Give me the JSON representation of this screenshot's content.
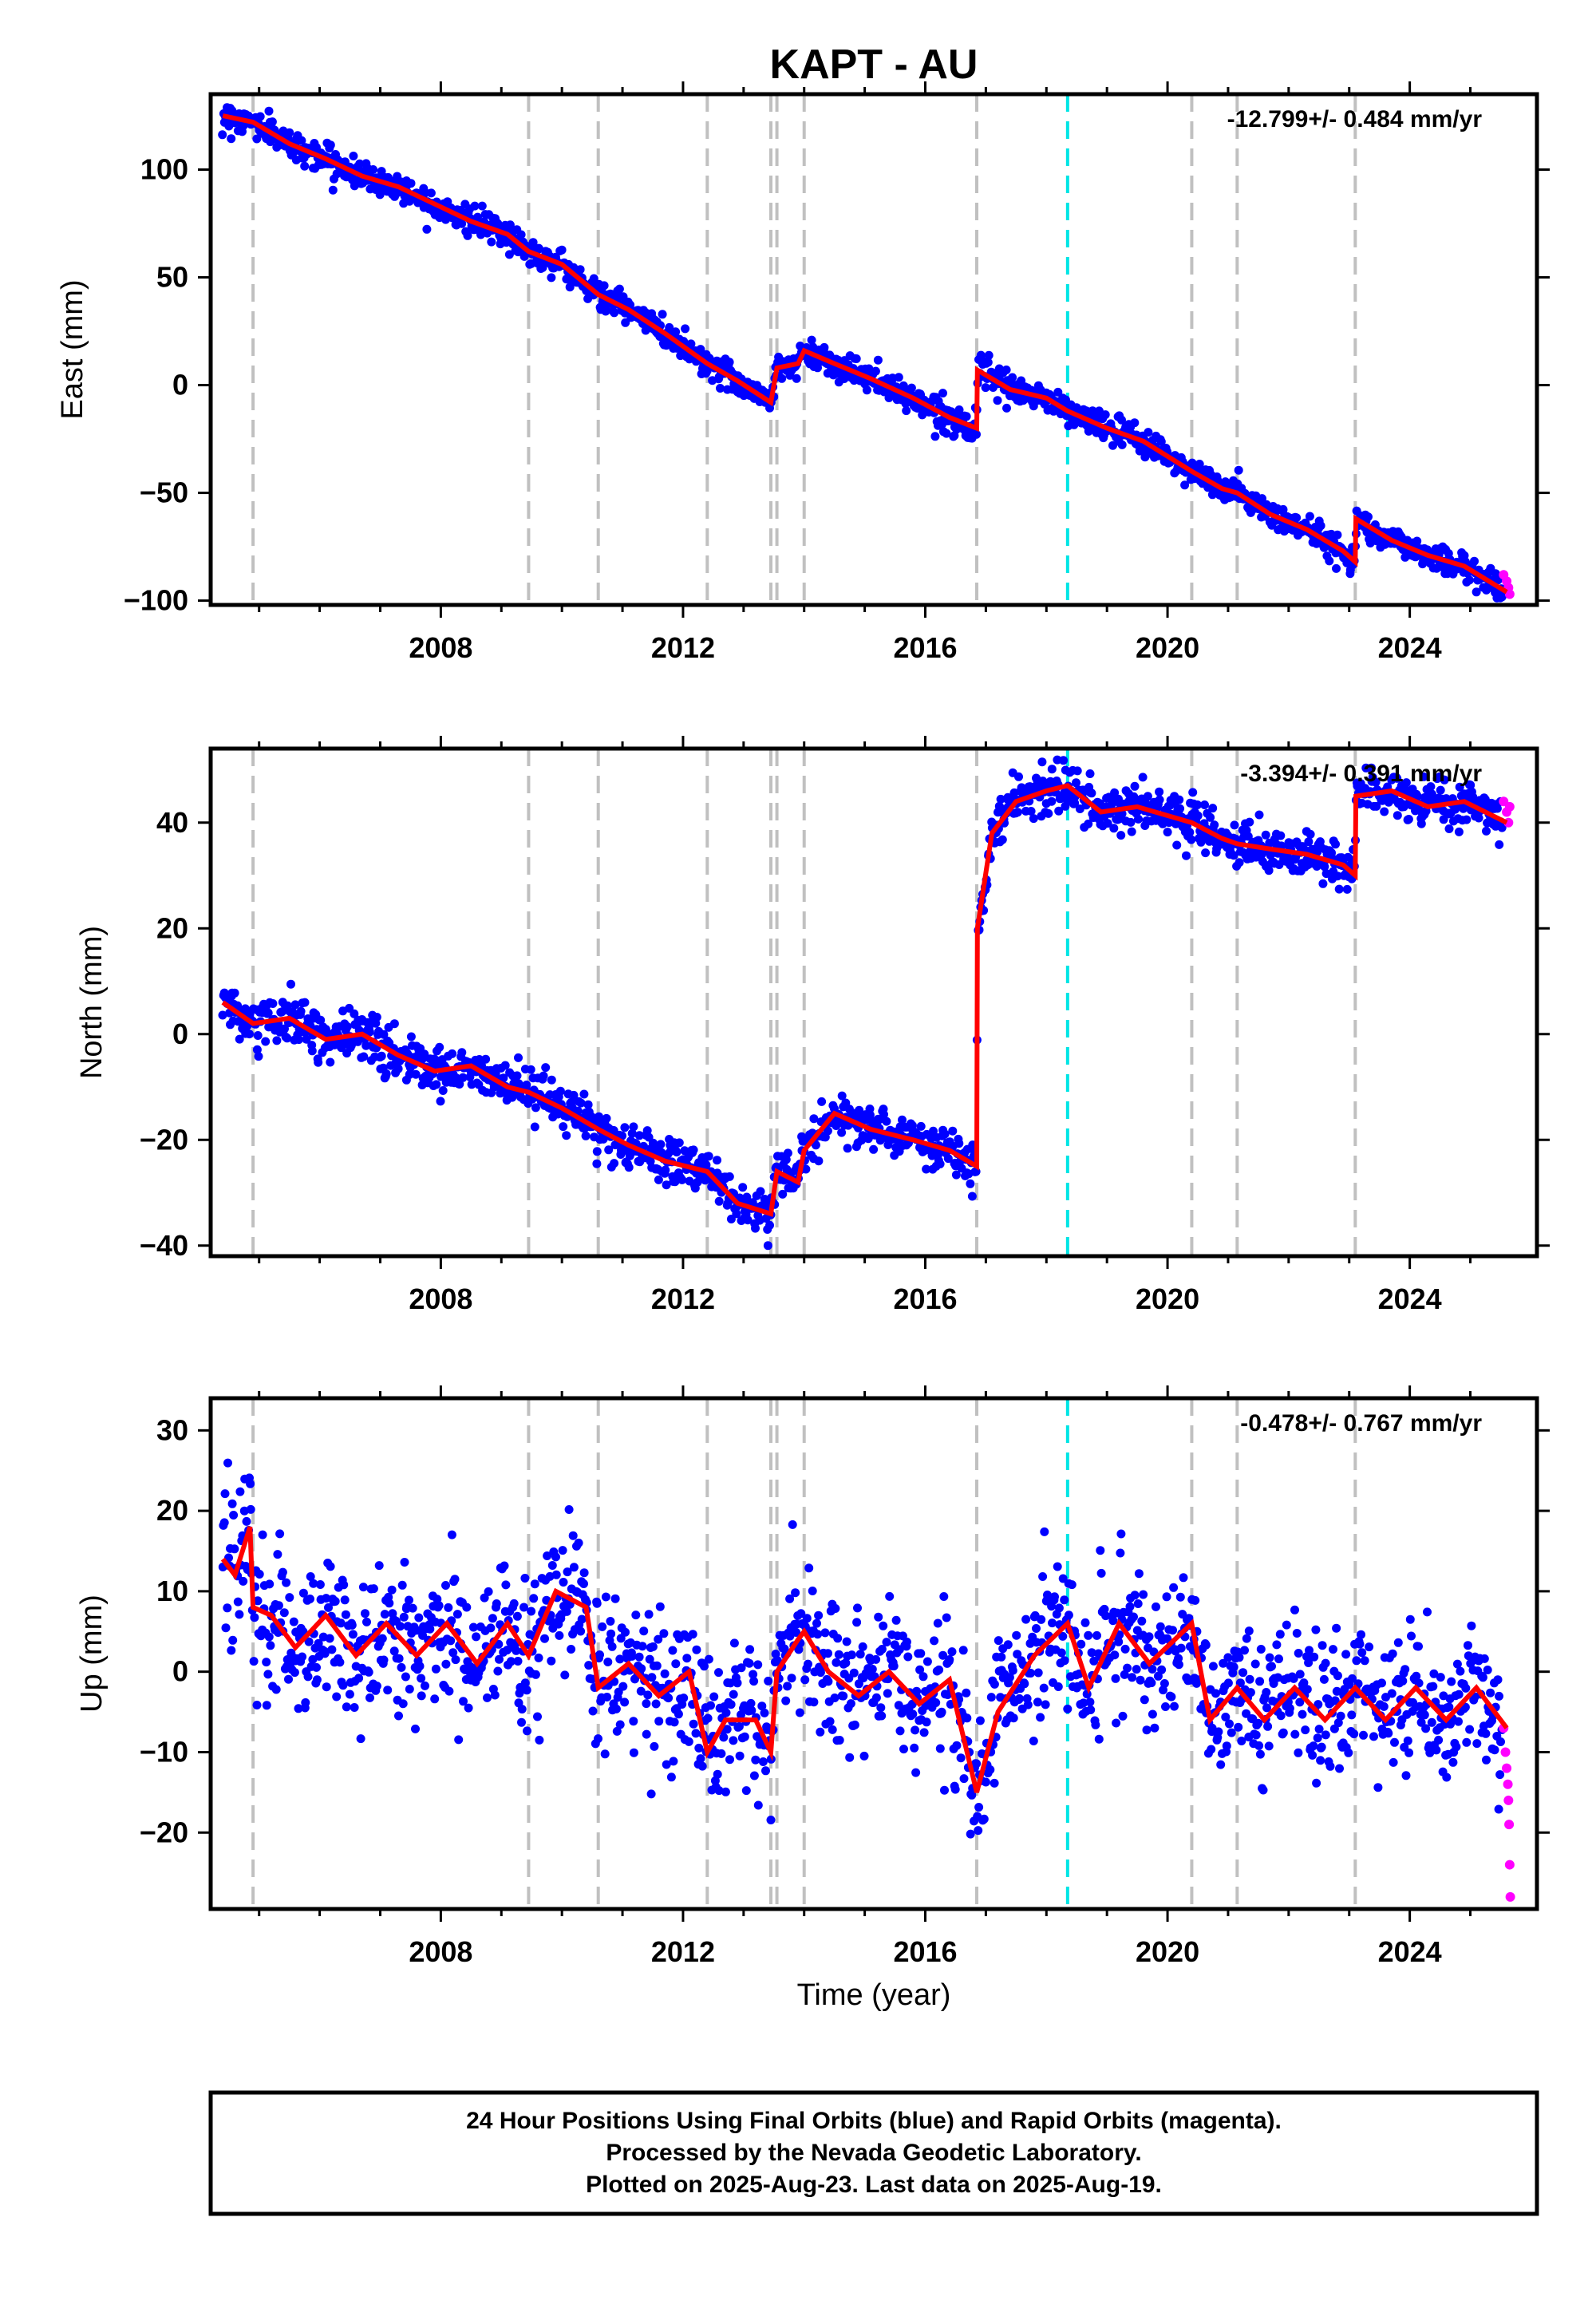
{
  "title": "KAPT - AU",
  "xlabel": "Time (year)",
  "caption": {
    "lines": [
      "24 Hour Positions Using Final Orbits (blue) and Rapid Orbits (magenta).",
      "Processed by the Nevada Geodetic Laboratory.",
      "Plotted on 2025-Aug-23. Last data on 2025-Aug-19."
    ]
  },
  "colors": {
    "final_points": "#0000ff",
    "rapid_points": "#ff00ff",
    "model": "#ff0000",
    "equipment_change": "#c0c0c0",
    "earthquake": "#00e5e5",
    "frame": "#000000"
  },
  "chart_data": [
    {
      "type": "scatter",
      "ylabel": "East (mm)",
      "rate": "-12.799+/- 0.484 mm/yr",
      "xlim": [
        2004.2,
        2026.1
      ],
      "ylim": [
        -102,
        135
      ],
      "xticks": [
        2008,
        2012,
        2016,
        2020,
        2024
      ],
      "yticks": [
        -100,
        -50,
        0,
        50,
        100
      ],
      "equipment_changes": [
        2004.9,
        2009.45,
        2010.6,
        2012.4,
        2013.45,
        2013.55,
        2014.0,
        2016.85,
        2020.4,
        2021.15,
        2023.1
      ],
      "earthquakes": [
        2018.35
      ],
      "model": {
        "x": [
          2004.4,
          2004.9,
          2005.5,
          2006.1,
          2006.7,
          2007.3,
          2007.9,
          2008.5,
          2009.1,
          2009.45,
          2010.0,
          2010.6,
          2011.1,
          2011.7,
          2012.4,
          2012.9,
          2013.45,
          2013.55,
          2013.9,
          2014.0,
          2014.5,
          2015.1,
          2015.8,
          2016.4,
          2016.85,
          2016.86,
          2017.4,
          2018.0,
          2018.35,
          2019.0,
          2019.6,
          2020.4,
          2020.9,
          2021.15,
          2021.7,
          2022.3,
          2022.9,
          2023.1,
          2023.11,
          2023.7,
          2024.3,
          2024.9,
          2025.6
        ],
        "y": [
          125,
          122,
          112,
          105,
          97,
          92,
          84,
          76,
          70,
          62,
          56,
          42,
          35,
          24,
          10,
          2,
          -8,
          8,
          10,
          16,
          10,
          3,
          -6,
          -15,
          -20,
          7,
          -2,
          -6,
          -12,
          -20,
          -26,
          -40,
          -48,
          -50,
          -60,
          -67,
          -77,
          -82,
          -62,
          -72,
          -79,
          -84,
          -96
        ]
      },
      "rapid": {
        "x": [
          2025.55,
          2025.6,
          2025.63,
          2025.65
        ],
        "y": [
          -88,
          -91,
          -94,
          -97
        ]
      }
    },
    {
      "type": "scatter",
      "ylabel": "North (mm)",
      "rate": "-3.394+/- 0.391 mm/yr",
      "xlim": [
        2004.2,
        2026.1
      ],
      "ylim": [
        -42,
        54
      ],
      "xticks": [
        2008,
        2012,
        2016,
        2020,
        2024
      ],
      "yticks": [
        -40,
        -20,
        0,
        20,
        40
      ],
      "equipment_changes": [
        2004.9,
        2009.45,
        2010.6,
        2012.4,
        2013.45,
        2013.55,
        2014.0,
        2016.85,
        2020.4,
        2021.15,
        2023.1
      ],
      "earthquakes": [
        2018.35
      ],
      "model": {
        "x": [
          2004.4,
          2004.9,
          2005.5,
          2006.1,
          2006.7,
          2007.3,
          2007.9,
          2008.5,
          2009.1,
          2009.45,
          2010.0,
          2010.6,
          2011.1,
          2011.7,
          2012.4,
          2012.9,
          2013.45,
          2013.55,
          2013.9,
          2014.0,
          2014.5,
          2015.1,
          2015.8,
          2016.4,
          2016.85,
          2016.86,
          2017.1,
          2017.5,
          2018.0,
          2018.35,
          2018.9,
          2019.5,
          2020.4,
          2020.9,
          2021.15,
          2021.7,
          2022.3,
          2022.9,
          2023.1,
          2023.11,
          2023.7,
          2024.3,
          2024.9,
          2025.6
        ],
        "y": [
          6,
          2,
          3,
          -1,
          0,
          -4,
          -7,
          -6,
          -10,
          -11,
          -14,
          -18,
          -21,
          -24,
          -26,
          -32,
          -34,
          -26,
          -28,
          -22,
          -15,
          -18,
          -20,
          -22,
          -25,
          20,
          38,
          44,
          46,
          47,
          42,
          43,
          40,
          37,
          36,
          35,
          34,
          32,
          30,
          45,
          46,
          43,
          44,
          40
        ]
      },
      "rapid": {
        "x": [
          2025.55,
          2025.6,
          2025.63,
          2025.65
        ],
        "y": [
          44,
          42,
          40,
          43
        ]
      }
    },
    {
      "type": "scatter",
      "ylabel": "Up (mm)",
      "rate": "-0.478+/- 0.767 mm/yr",
      "xlim": [
        2004.2,
        2026.1
      ],
      "ylim": [
        -29.5,
        34
      ],
      "xticks": [
        2008,
        2012,
        2016,
        2020,
        2024
      ],
      "yticks": [
        -20,
        -10,
        0,
        10,
        20,
        30
      ],
      "equipment_changes": [
        2004.9,
        2009.45,
        2010.6,
        2012.4,
        2013.45,
        2013.55,
        2014.0,
        2016.85,
        2020.4,
        2021.15,
        2023.1
      ],
      "earthquakes": [
        2018.35
      ],
      "model": {
        "x": [
          2004.4,
          2004.6,
          2004.85,
          2004.9,
          2005.2,
          2005.6,
          2006.1,
          2006.6,
          2007.1,
          2007.6,
          2008.1,
          2008.6,
          2009.1,
          2009.45,
          2009.9,
          2010.4,
          2010.6,
          2011.1,
          2011.6,
          2012.1,
          2012.4,
          2012.7,
          2013.2,
          2013.45,
          2013.55,
          2013.9,
          2014.0,
          2014.4,
          2014.9,
          2015.4,
          2015.9,
          2016.4,
          2016.85,
          2017.2,
          2017.8,
          2018.35,
          2018.7,
          2019.2,
          2019.7,
          2020.4,
          2020.7,
          2021.15,
          2021.6,
          2022.1,
          2022.6,
          2023.1,
          2023.6,
          2024.1,
          2024.6,
          2025.1,
          2025.6
        ],
        "y": [
          14,
          12,
          18,
          8,
          7,
          3,
          7,
          2,
          6,
          2,
          6,
          1,
          6,
          2,
          10,
          8,
          -2,
          1,
          -3,
          0,
          -10,
          -6,
          -6,
          -10,
          0,
          4,
          5,
          0,
          -3,
          0,
          -4,
          -1,
          -15,
          -5,
          2,
          6,
          -2,
          6,
          1,
          6,
          -6,
          -2,
          -6,
          -2,
          -6,
          -2,
          -6,
          -2,
          -6,
          -2,
          -7
        ]
      },
      "rapid": {
        "x": [
          2025.55,
          2025.58,
          2025.6,
          2025.62,
          2025.63,
          2025.64,
          2025.65,
          2025.66
        ],
        "y": [
          -7,
          -10,
          -12,
          -14,
          -16,
          -19,
          -24,
          -28
        ]
      }
    }
  ]
}
